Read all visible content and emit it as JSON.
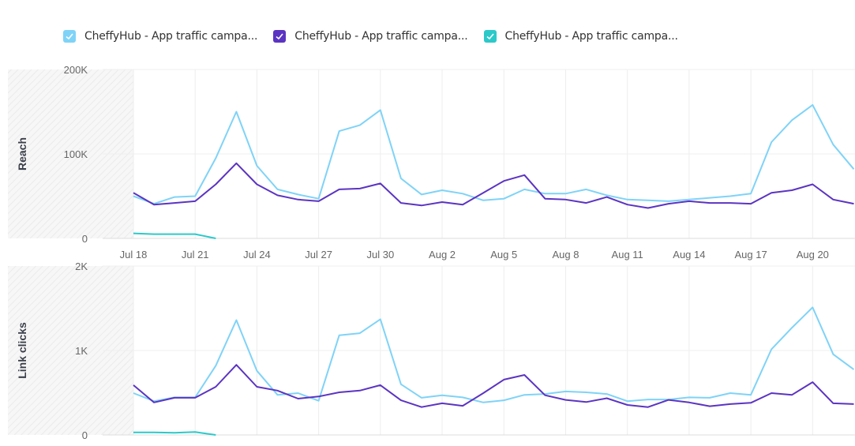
{
  "legend": [
    {
      "label": "CheffyHub - App traffic campa...",
      "color": "#7fd3f7"
    },
    {
      "label": "CheffyHub - App traffic campa...",
      "color": "#5b34c2"
    },
    {
      "label": "CheffyHub - App traffic campa...",
      "color": "#2cc9c9"
    }
  ],
  "chart_data": [
    {
      "type": "line",
      "ylabel": "Reach",
      "ylim": [
        0,
        200000
      ],
      "yticks": [
        "0",
        "100K",
        "200K"
      ],
      "xtick_labels": [
        "Jul 18",
        "Jul 21",
        "Jul 24",
        "Jul 27",
        "Jul 30",
        "Aug 2",
        "Aug 5",
        "Aug 8",
        "Aug 11",
        "Aug 14",
        "Aug 17",
        "Aug 20"
      ],
      "grid": true,
      "series": [
        {
          "name": "CheffyHub - App traffic campa...",
          "color": "#7fd3f7",
          "values": [
            50000,
            41000,
            49000,
            50000,
            95000,
            150000,
            86000,
            58000,
            52000,
            47000,
            127000,
            134000,
            152000,
            71000,
            52000,
            57000,
            53000,
            45000,
            47000,
            58000,
            53000,
            53000,
            58000,
            51000,
            46000,
            45000,
            44000,
            46000,
            48000,
            50000,
            53000,
            114000,
            140000,
            158000,
            111000,
            82000
          ]
        },
        {
          "name": "CheffyHub - App traffic campa...",
          "color": "#5b34c2",
          "values": [
            54000,
            40000,
            42000,
            44000,
            64000,
            89000,
            64000,
            51000,
            46000,
            44000,
            58000,
            59000,
            65000,
            42000,
            39000,
            43000,
            40000,
            54000,
            68000,
            75000,
            47000,
            46000,
            42000,
            49000,
            40000,
            36000,
            41000,
            44000,
            42000,
            42000,
            41000,
            54000,
            57000,
            64000,
            46000,
            41000
          ]
        },
        {
          "name": "CheffyHub - App traffic campa...",
          "color": "#2cc9c9",
          "values": [
            6000,
            5000,
            5000,
            5000,
            0
          ]
        }
      ]
    },
    {
      "type": "line",
      "ylabel": "Link clicks",
      "ylim": [
        0,
        2000
      ],
      "yticks": [
        "0",
        "1K",
        "2K"
      ],
      "grid": true,
      "series": [
        {
          "name": "CheffyHub - App traffic campa...",
          "color": "#7fd3f7",
          "values": [
            495,
            400,
            445,
            445,
            820,
            1360,
            760,
            475,
            495,
            405,
            1180,
            1205,
            1370,
            600,
            440,
            470,
            445,
            385,
            410,
            475,
            485,
            515,
            505,
            485,
            400,
            420,
            420,
            445,
            440,
            495,
            475,
            1015,
            1270,
            1510,
            955,
            775
          ]
        },
        {
          "name": "CheffyHub - App traffic campa...",
          "color": "#5b34c2",
          "values": [
            590,
            385,
            440,
            440,
            570,
            830,
            570,
            525,
            430,
            455,
            505,
            525,
            590,
            410,
            330,
            375,
            345,
            495,
            655,
            710,
            470,
            415,
            390,
            435,
            355,
            330,
            415,
            385,
            340,
            365,
            380,
            495,
            475,
            625,
            375,
            365
          ]
        },
        {
          "name": "CheffyHub - App traffic campa...",
          "color": "#2cc9c9",
          "values": [
            30,
            30,
            25,
            35,
            0
          ]
        }
      ]
    }
  ]
}
